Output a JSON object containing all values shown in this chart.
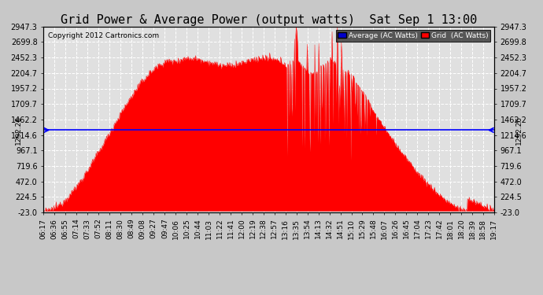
{
  "title": "Grid Power & Average Power (output watts)  Sat Sep 1 13:00",
  "copyright": "Copyright 2012 Cartronics.com",
  "avg_value": 1292.26,
  "ymin": -23.0,
  "ymax": 2947.3,
  "yticks": [
    2947.3,
    2699.8,
    2452.3,
    2204.7,
    1957.2,
    1709.7,
    1462.2,
    1214.6,
    967.1,
    719.6,
    472.0,
    224.5,
    -23.0
  ],
  "background_color": "#c8c8c8",
  "plot_bg_color": "#e0e0e0",
  "fill_color": "#ff0000",
  "avg_line_color": "#0000ff",
  "grid_color": "#ffffff",
  "title_fontsize": 11,
  "copyright_fontsize": 6.5,
  "tick_label_fontsize": 6.5,
  "ytick_label_fontsize": 7,
  "t_start": 377,
  "t_end": 1157,
  "xtick_minutes": [
    377,
    396,
    415,
    434,
    453,
    472,
    491,
    510,
    529,
    548,
    567,
    587,
    606,
    625,
    644,
    663,
    682,
    701,
    720,
    739,
    758,
    777,
    796,
    815,
    834,
    853,
    872,
    891,
    910,
    929,
    948,
    967,
    986,
    1005,
    1024,
    1043,
    1062,
    1081,
    1100,
    1119,
    1138,
    1157
  ],
  "seed": 12345
}
